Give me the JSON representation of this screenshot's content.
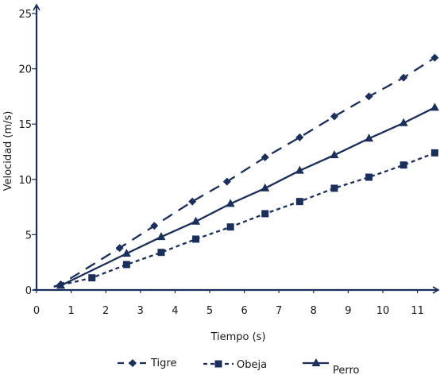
{
  "chart_data": {
    "type": "line",
    "title": "",
    "xlabel": "Tiempo (s)",
    "ylabel": "Velocidad (m/s)",
    "xlim": [
      0,
      11.6
    ],
    "ylim": [
      0,
      25
    ],
    "x_ticks": [
      "0",
      "1",
      "2",
      "3",
      "4",
      "5",
      "6",
      "7",
      "8",
      "9",
      "10",
      "11"
    ],
    "y_ticks": [
      "0",
      "5",
      "10",
      "15",
      "20",
      "25"
    ],
    "grid": false,
    "legend_position": "bottom",
    "color": "#1b2f5c",
    "series": [
      {
        "name": "Tigre",
        "line_style": "long-dash",
        "marker": "diamond",
        "line_start": [
          0.5,
          0.3
        ],
        "points": [
          [
            0.7,
            0.5
          ],
          [
            2.4,
            3.8
          ],
          [
            3.4,
            5.8
          ],
          [
            4.5,
            8.0
          ],
          [
            5.5,
            9.8
          ],
          [
            6.6,
            12.0
          ],
          [
            7.6,
            13.8
          ],
          [
            8.6,
            15.7
          ],
          [
            9.6,
            17.5
          ],
          [
            10.6,
            19.2
          ],
          [
            11.5,
            21.0
          ]
        ]
      },
      {
        "name": "Obeja",
        "line_style": "short-dash",
        "marker": "square",
        "line_start": [
          0.5,
          0.3
        ],
        "points": [
          [
            1.6,
            1.1
          ],
          [
            2.6,
            2.3
          ],
          [
            3.6,
            3.4
          ],
          [
            4.6,
            4.6
          ],
          [
            5.6,
            5.7
          ],
          [
            6.6,
            6.9
          ],
          [
            7.6,
            8.0
          ],
          [
            8.6,
            9.2
          ],
          [
            9.6,
            10.2
          ],
          [
            10.6,
            11.3
          ],
          [
            11.5,
            12.4
          ]
        ]
      },
      {
        "name": "Perro",
        "line_style": "solid",
        "marker": "triangle",
        "line_start": [
          0.5,
          0.3
        ],
        "points": [
          [
            0.7,
            0.4
          ],
          [
            2.6,
            3.3
          ],
          [
            3.6,
            4.8
          ],
          [
            4.6,
            6.2
          ],
          [
            5.6,
            7.8
          ],
          [
            6.6,
            9.2
          ],
          [
            7.6,
            10.8
          ],
          [
            8.6,
            12.2
          ],
          [
            9.6,
            13.7
          ],
          [
            10.6,
            15.1
          ],
          [
            11.5,
            16.5
          ]
        ]
      }
    ]
  }
}
